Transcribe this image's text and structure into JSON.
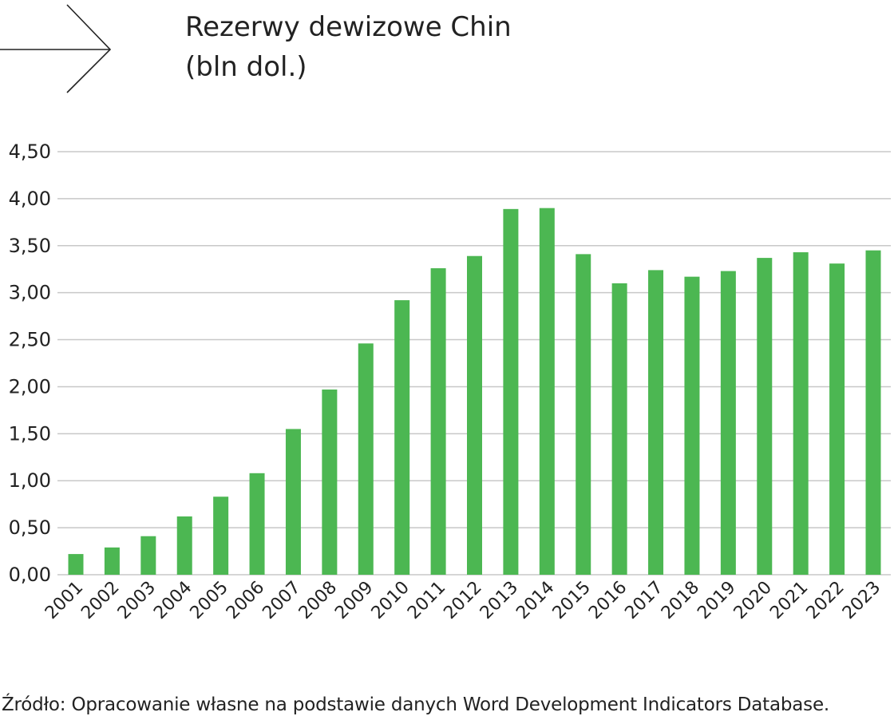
{
  "header": {
    "title_line1": "Rezerwy dewizowe Chin",
    "title_line2": "(bln dol.)",
    "arrow_icon": "arrow-right-icon"
  },
  "source_note": "Źródło: Opracowanie własne na podstawie danych Word Development Indicators Database.",
  "colors": {
    "bar": "#4cb752",
    "grid": "#c8c8c8",
    "text": "#222222"
  },
  "chart_data": {
    "type": "bar",
    "title": "Rezerwy dewizowe Chin (bln dol.)",
    "xlabel": "",
    "ylabel": "",
    "ylim": [
      0,
      4.5
    ],
    "yticks": [
      "0,00",
      "0,50",
      "1,00",
      "1,50",
      "2,00",
      "2,50",
      "3,00",
      "3,50",
      "4,00",
      "4,50"
    ],
    "grid": true,
    "legend": "none",
    "categories": [
      "2001",
      "2002",
      "2003",
      "2004",
      "2005",
      "2006",
      "2007",
      "2008",
      "2009",
      "2010",
      "2011",
      "2012",
      "2013",
      "2014",
      "2015",
      "2016",
      "2017",
      "2018",
      "2019",
      "2020",
      "2021",
      "2022",
      "2023"
    ],
    "values": [
      0.22,
      0.29,
      0.41,
      0.62,
      0.83,
      1.08,
      1.55,
      1.97,
      2.46,
      2.92,
      3.26,
      3.39,
      3.89,
      3.9,
      3.41,
      3.1,
      3.24,
      3.17,
      3.23,
      3.37,
      3.43,
      3.31,
      3.45
    ]
  }
}
